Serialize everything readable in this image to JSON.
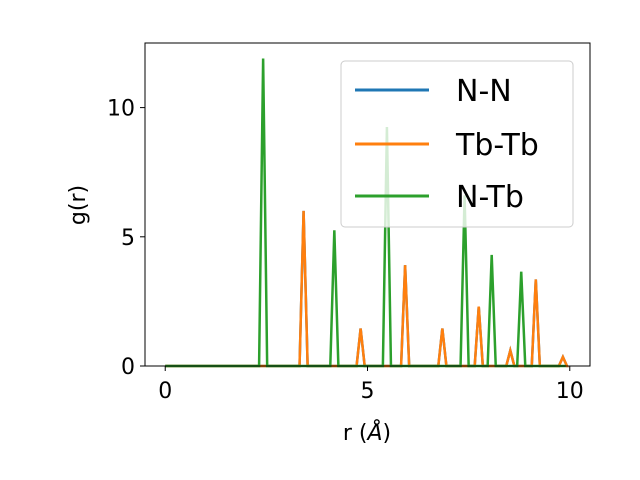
{
  "chart_data": {
    "type": "line",
    "title": "",
    "xlabel_main": "r (",
    "xlabel_unit": "Å",
    "xlabel_end": ")",
    "ylabel": "g(r)",
    "xlim": [
      -0.5,
      10.5
    ],
    "ylim": [
      0,
      12.5
    ],
    "xticks": [
      0,
      5,
      10
    ],
    "yticks": [
      0,
      5,
      10
    ],
    "xtick_labels": [
      "0",
      "5",
      "10"
    ],
    "ytick_labels": [
      "0",
      "5",
      "10"
    ],
    "legend_position": "top-right",
    "series": [
      {
        "name": "N-N",
        "color": "#1f77b4",
        "peaks": [
          {
            "x": 3.42,
            "y": 6.0,
            "w": 0.1
          },
          {
            "x": 4.83,
            "y": 1.45,
            "w": 0.1
          },
          {
            "x": 5.93,
            "y": 3.9,
            "w": 0.1
          },
          {
            "x": 6.85,
            "y": 1.45,
            "w": 0.1
          },
          {
            "x": 7.75,
            "y": 2.3,
            "w": 0.1
          },
          {
            "x": 8.53,
            "y": 0.6,
            "w": 0.1
          },
          {
            "x": 9.16,
            "y": 3.35,
            "w": 0.1
          },
          {
            "x": 9.83,
            "y": 0.35,
            "w": 0.1
          }
        ]
      },
      {
        "name": "Tb-Tb",
        "color": "#ff7f0e",
        "peaks": [
          {
            "x": 3.42,
            "y": 6.0,
            "w": 0.1
          },
          {
            "x": 4.83,
            "y": 1.45,
            "w": 0.1
          },
          {
            "x": 5.93,
            "y": 3.9,
            "w": 0.1
          },
          {
            "x": 6.85,
            "y": 1.45,
            "w": 0.1
          },
          {
            "x": 7.75,
            "y": 2.3,
            "w": 0.1
          },
          {
            "x": 8.53,
            "y": 0.6,
            "w": 0.1
          },
          {
            "x": 9.16,
            "y": 3.35,
            "w": 0.1
          },
          {
            "x": 9.83,
            "y": 0.35,
            "w": 0.1
          }
        ]
      },
      {
        "name": "N-Tb",
        "color": "#2ca02c",
        "peaks": [
          {
            "x": 2.42,
            "y": 11.9,
            "w": 0.1
          },
          {
            "x": 4.18,
            "y": 5.25,
            "w": 0.1
          },
          {
            "x": 5.48,
            "y": 9.25,
            "w": 0.1
          },
          {
            "x": 7.4,
            "y": 6.6,
            "w": 0.1
          },
          {
            "x": 8.07,
            "y": 4.3,
            "w": 0.1
          },
          {
            "x": 8.8,
            "y": 3.65,
            "w": 0.1
          }
        ]
      }
    ]
  }
}
